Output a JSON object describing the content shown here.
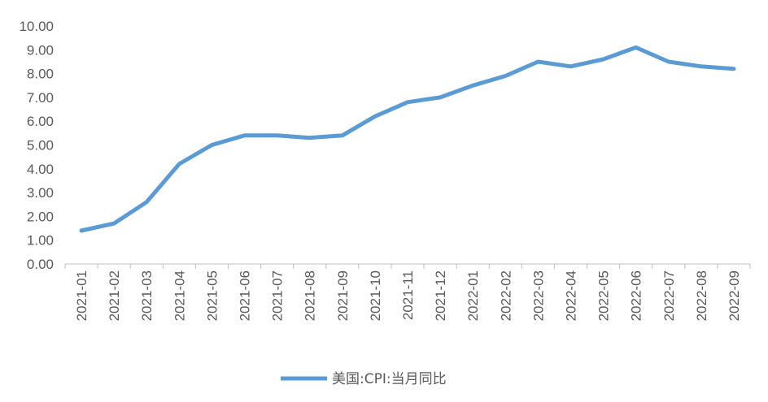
{
  "chart_data": {
    "type": "line",
    "categories": [
      "2021-01",
      "2021-02",
      "2021-03",
      "2021-04",
      "2021-05",
      "2021-06",
      "2021-07",
      "2021-08",
      "2021-09",
      "2021-10",
      "2021-11",
      "2021-12",
      "2022-01",
      "2022-02",
      "2022-03",
      "2022-04",
      "2022-05",
      "2022-06",
      "2022-07",
      "2022-08",
      "2022-09"
    ],
    "series": [
      {
        "name": "美国:CPI:当月同比",
        "values": [
          1.4,
          1.7,
          2.6,
          4.2,
          5.0,
          5.4,
          5.4,
          5.3,
          5.4,
          6.2,
          6.8,
          7.0,
          7.5,
          7.9,
          8.5,
          8.3,
          8.6,
          9.1,
          8.5,
          8.3,
          8.2
        ],
        "color": "#5b9bd5"
      }
    ],
    "ylim": [
      0,
      10
    ],
    "yticks": [
      "0.00",
      "1.00",
      "2.00",
      "3.00",
      "4.00",
      "5.00",
      "6.00",
      "7.00",
      "8.00",
      "9.00",
      "10.00"
    ],
    "grid": false,
    "legend_position": "bottom"
  }
}
